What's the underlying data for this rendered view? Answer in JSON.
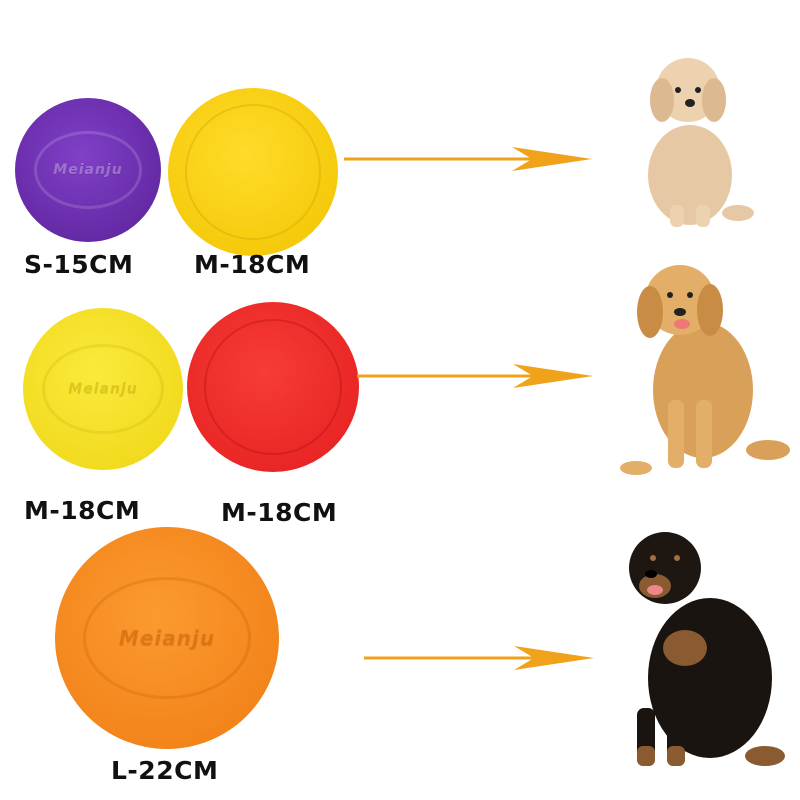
{
  "rows": [
    {
      "discs": [
        {
          "label": "S-15CM",
          "color": "#6b2fb0",
          "logo": "Meianju"
        },
        {
          "label": "M-18CM",
          "color": "#f7cf12"
        }
      ],
      "dog": "poodle",
      "arrow_color": "#f0a21a"
    },
    {
      "discs": [
        {
          "label": "M-18CM",
          "color": "#f4e12a",
          "logo": "Meianju"
        },
        {
          "label": "M-18CM",
          "color": "#ee2d2a"
        }
      ],
      "dog": "golden-retriever",
      "arrow_color": "#f0a21a"
    },
    {
      "discs": [
        {
          "label": "L-22CM",
          "color": "#f58a1f",
          "logo": "Meianju"
        }
      ],
      "dog": "rottweiler",
      "arrow_color": "#f0a21a"
    }
  ]
}
